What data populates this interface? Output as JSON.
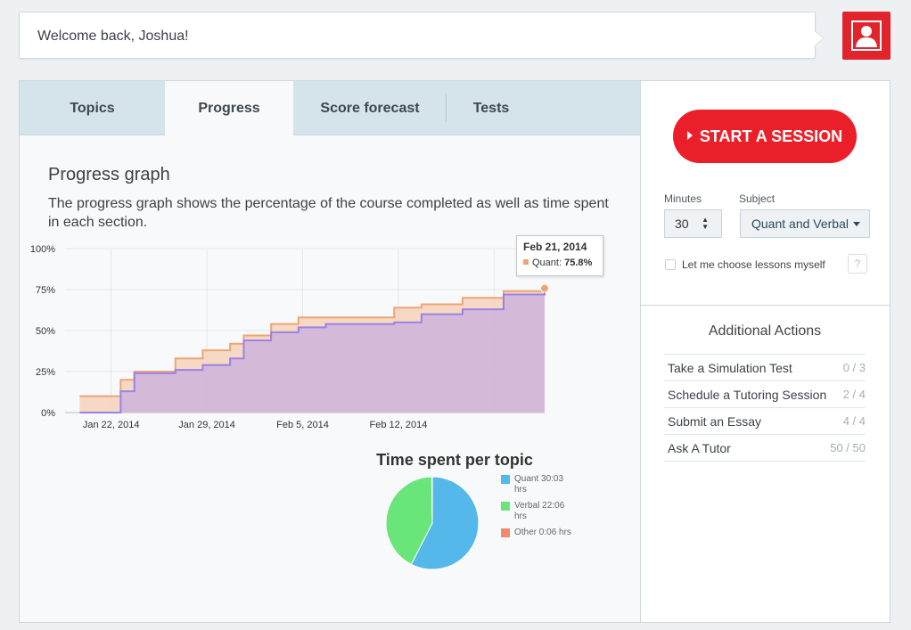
{
  "header": {
    "welcome": "Welcome back, Joshua!",
    "avatar_icon": "user-silhouette-icon"
  },
  "tabs": [
    {
      "label": "Topics",
      "active": false
    },
    {
      "label": "Progress",
      "active": true
    },
    {
      "label": "Score forecast",
      "active": false
    },
    {
      "label": "Tests",
      "active": false
    }
  ],
  "progress": {
    "title": "Progress graph",
    "description": "The progress graph shows the percentage of the course completed as well as time spent in each section."
  },
  "tooltip": {
    "date": "Feb 21, 2014",
    "series": "Quant:",
    "value": "75.8%"
  },
  "pie": {
    "title": "Time spent per topic",
    "legend": [
      {
        "label": "Quant 30:03 hrs",
        "color": "#55b8ea"
      },
      {
        "label": "Verbal 22:06 hrs",
        "color": "#6ae579"
      },
      {
        "label": "Other 0:06 hrs",
        "color": "#f08a6b"
      }
    ]
  },
  "session": {
    "start_label": "START A SESSION",
    "minutes_label": "Minutes",
    "minutes_value": "30",
    "subject_label": "Subject",
    "subject_value": "Quant and Verbal",
    "choose_label": "Let me choose lessons myself",
    "help": "?"
  },
  "additional": {
    "title": "Additional Actions",
    "items": [
      {
        "label": "Take a Simulation Test",
        "count": "0 / 3"
      },
      {
        "label": "Schedule a Tutoring Session",
        "count": "2 / 4"
      },
      {
        "label": "Submit an Essay",
        "count": "4 / 4"
      },
      {
        "label": "Ask A Tutor",
        "count": "50 / 50"
      }
    ]
  },
  "chart_data": [
    {
      "type": "area",
      "title": "",
      "xlabel": "",
      "ylabel": "",
      "x_tick_labels": [
        "Jan 22, 2014",
        "Jan 29, 2014",
        "Feb 5, 2014",
        "Feb 12, 2014"
      ],
      "y_tick_labels": [
        "0%",
        "25%",
        "50%",
        "75%",
        "100%"
      ],
      "ylim": [
        0,
        100
      ],
      "x": [
        "2014-01-18",
        "2014-01-19",
        "2014-01-21",
        "2014-01-22",
        "2014-01-25",
        "2014-01-27",
        "2014-01-29",
        "2014-01-30",
        "2014-02-01",
        "2014-02-03",
        "2014-02-05",
        "2014-02-08",
        "2014-02-10",
        "2014-02-12",
        "2014-02-15",
        "2014-02-18",
        "2014-02-21"
      ],
      "series": [
        {
          "name": "",
          "color": "#f0a473",
          "values": [
            10,
            10,
            20,
            25,
            33,
            38,
            42,
            47,
            54,
            58,
            58,
            58,
            64,
            66,
            70,
            74,
            75.8
          ]
        },
        {
          "name": "Quant",
          "color": "#9b82e6",
          "values": [
            0,
            0,
            13,
            24,
            26,
            29,
            33,
            44,
            49,
            52,
            54,
            54,
            55,
            60,
            63,
            72,
            75.8
          ]
        }
      ],
      "grid": true
    },
    {
      "type": "pie",
      "title": "Time spent per topic",
      "categories": [
        "Quant",
        "Verbal",
        "Other"
      ],
      "values": [
        30.05,
        22.1,
        0.1
      ],
      "value_labels": [
        "30:03 hrs",
        "22:06 hrs",
        "0:06 hrs"
      ]
    }
  ]
}
